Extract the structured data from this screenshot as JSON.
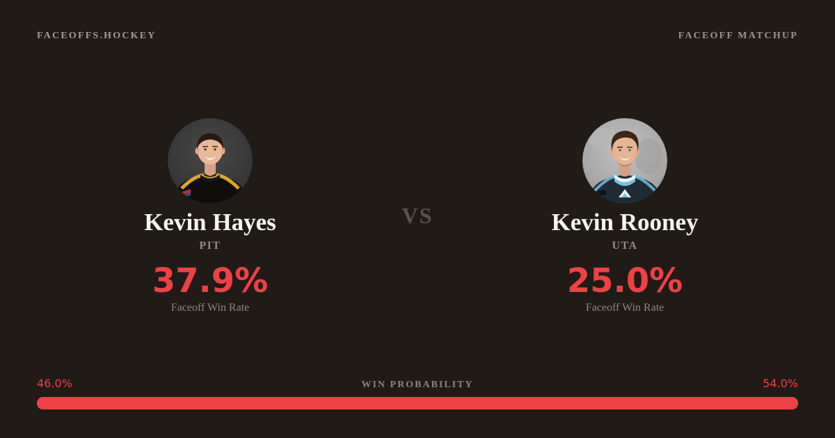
{
  "colors": {
    "background": "#201b17",
    "accent_red": "#ee4144",
    "text_primary": "#f7f4f0",
    "text_muted": "#8d8680",
    "vs_gray": "#57524c"
  },
  "header": {
    "brand": "FACEOFFS.HOCKEY",
    "page_label": "FACEOFF MATCHUP"
  },
  "matchup": {
    "vs_label": "VS",
    "players": [
      {
        "name": "Kevin Hayes",
        "team": "PIT",
        "faceoff_win_rate": "37.9%",
        "stat_label": "Faceoff Win Rate",
        "avatar_alt": "Kevin Hayes headshot in black and gold Pittsburgh jersey"
      },
      {
        "name": "Kevin Rooney",
        "team": "UTA",
        "faceoff_win_rate": "25.0%",
        "stat_label": "Faceoff Win Rate",
        "avatar_alt": "Kevin Rooney headshot in dark navy Utah jersey"
      }
    ]
  },
  "win_probability": {
    "title": "WIN PROBABILITY",
    "left_pct_label": "46.0%",
    "right_pct_label": "54.0%",
    "left_value": 46,
    "right_value": 54,
    "bar_color": "#ee4144"
  }
}
